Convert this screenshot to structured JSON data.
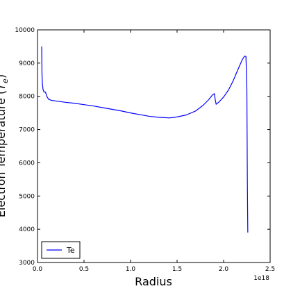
{
  "chart_data": {
    "type": "line",
    "xlabel": "Radius",
    "ylabel": "Electron Temperature (T_e)",
    "x_offset_label": "1e18",
    "xlim": [
      0.0,
      2.5
    ],
    "ylim": [
      3000,
      10000
    ],
    "x_ticks": [
      0.0,
      0.5,
      1.0,
      1.5,
      2.0,
      2.5
    ],
    "x_tick_labels": [
      "0.0",
      "0.5",
      "1.0",
      "1.5",
      "2.0",
      "2.5"
    ],
    "y_ticks": [
      3000,
      4000,
      5000,
      6000,
      7000,
      8000,
      9000,
      10000
    ],
    "y_tick_labels": [
      "3000",
      "4000",
      "5000",
      "6000",
      "7000",
      "8000",
      "9000",
      "10000"
    ],
    "legend_position": "lower-left",
    "series": [
      {
        "name": "Te",
        "color": "#0000ff",
        "points": [
          [
            0.045,
            9500
          ],
          [
            0.048,
            8700
          ],
          [
            0.052,
            8400
          ],
          [
            0.06,
            8200
          ],
          [
            0.07,
            8130
          ],
          [
            0.085,
            8130
          ],
          [
            0.1,
            8000
          ],
          [
            0.12,
            7910
          ],
          [
            0.15,
            7880
          ],
          [
            0.2,
            7860
          ],
          [
            0.3,
            7820
          ],
          [
            0.4,
            7790
          ],
          [
            0.5,
            7750
          ],
          [
            0.6,
            7710
          ],
          [
            0.7,
            7660
          ],
          [
            0.8,
            7610
          ],
          [
            0.9,
            7560
          ],
          [
            1.0,
            7500
          ],
          [
            1.1,
            7450
          ],
          [
            1.2,
            7400
          ],
          [
            1.3,
            7370
          ],
          [
            1.42,
            7350
          ],
          [
            1.5,
            7380
          ],
          [
            1.6,
            7440
          ],
          [
            1.7,
            7560
          ],
          [
            1.78,
            7730
          ],
          [
            1.84,
            7900
          ],
          [
            1.88,
            8040
          ],
          [
            1.9,
            8080
          ],
          [
            1.91,
            7900
          ],
          [
            1.92,
            7760
          ],
          [
            1.95,
            7830
          ],
          [
            2.0,
            7980
          ],
          [
            2.05,
            8180
          ],
          [
            2.1,
            8450
          ],
          [
            2.15,
            8780
          ],
          [
            2.2,
            9100
          ],
          [
            2.225,
            9210
          ],
          [
            2.24,
            9200
          ],
          [
            2.25,
            8200
          ],
          [
            2.255,
            5500
          ],
          [
            2.26,
            3900
          ]
        ]
      }
    ]
  }
}
